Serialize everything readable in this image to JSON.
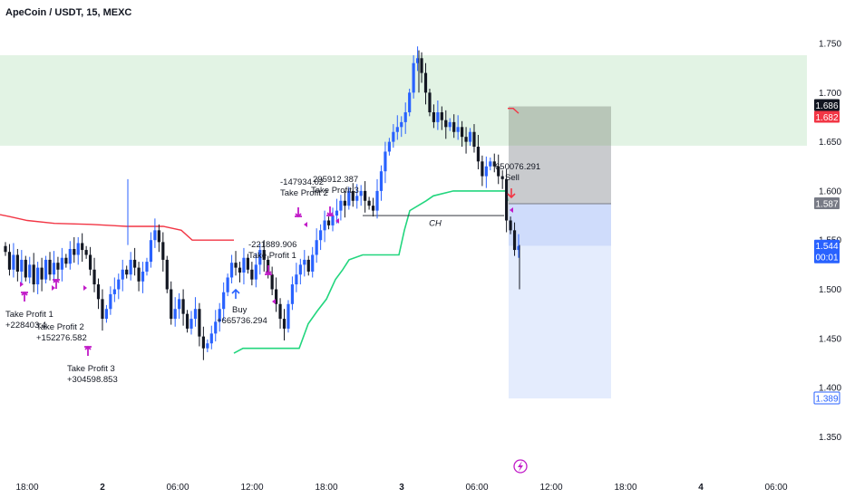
{
  "header": {
    "title": "ApeCoin / USDT, 15, MEXC"
  },
  "colors": {
    "bull": "#2962ff",
    "bear": "#131722",
    "wick": "#2962ff",
    "supply_zone": "#e2f3e4",
    "trail_upper": "#f23645",
    "trail_lower": "#22d67e",
    "marker": "#c11bc8",
    "badge_price": "#131722",
    "badge_red": "#f23645",
    "badge_gray": "#787b86",
    "badge_blue": "#2962ff",
    "stop_box": "#c9cbce",
    "target_box": "#cfdcfb",
    "target_box_light": "#e4ecfd"
  },
  "price_axis": {
    "labels": [
      "1.750",
      "1.700",
      "1.650",
      "1.600",
      "1.550",
      "1.500",
      "1.450",
      "1.400",
      "1.350"
    ],
    "badges": [
      {
        "text": "1.686",
        "kind": "price"
      },
      {
        "text": "1.682",
        "kind": "red"
      },
      {
        "text": "1.587",
        "kind": "gray"
      },
      {
        "text": "1.544",
        "sub": "00:01",
        "kind": "blue"
      },
      {
        "text": "1.389",
        "kind": "blue_outline"
      }
    ]
  },
  "time_axis": {
    "labels": [
      "18:00",
      "2",
      "06:00",
      "12:00",
      "18:00",
      "3",
      "06:00",
      "12:00",
      "18:00",
      "4",
      "06:00"
    ]
  },
  "annotations": {
    "tp1_a_title": "Take Profit 1",
    "tp1_a_value": "+228403.4",
    "tp2_title": "Take Profit 2",
    "tp2_value": "+152276.582",
    "tp3_a_title": "Take Profit 3",
    "tp3_a_value": "+304598.853",
    "buy_title": "Buy",
    "buy_value": "+665736.294",
    "tp1_b_value": "-221889.906",
    "tp1_b_title": "Take Profit 1",
    "tp2_b_value": "-147934.02",
    "tp2_b_title": "Take Profit 2",
    "tp3_b_value": "295912.387",
    "tp3_b_title": "Take Profit 3",
    "sell_value": "650076.291",
    "sell_title": "Sell",
    "ch_label": "CH"
  },
  "chart_data": {
    "type": "candlestick",
    "title": "ApeCoin / USDT, 15, MEXC",
    "ylim": [
      1.35,
      1.762
    ],
    "x_ticks": [
      "18:00",
      "2",
      "06:00",
      "12:00",
      "18:00",
      "3",
      "06:00",
      "12:00",
      "18:00",
      "4",
      "06:00"
    ],
    "supply_zone": [
      1.646,
      1.738
    ],
    "closes_approx": [
      1.538,
      1.52,
      1.535,
      1.518,
      1.53,
      1.512,
      1.525,
      1.505,
      1.522,
      1.51,
      1.53,
      1.515,
      1.527,
      1.52,
      1.532,
      1.526,
      1.541,
      1.535,
      1.547,
      1.54,
      1.535,
      1.52,
      1.505,
      1.49,
      1.47,
      1.48,
      1.495,
      1.5,
      1.51,
      1.52,
      1.515,
      1.53,
      1.522,
      1.508,
      1.518,
      1.528,
      1.55,
      1.56,
      1.548,
      1.53,
      1.5,
      1.47,
      1.48,
      1.49,
      1.475,
      1.46,
      1.47,
      1.48,
      1.452,
      1.44,
      1.445,
      1.455,
      1.467,
      1.48,
      1.497,
      1.512,
      1.527,
      1.522,
      1.517,
      1.532,
      1.52,
      1.51,
      1.525,
      1.54,
      1.53,
      1.515,
      1.5,
      1.485,
      1.47,
      1.46,
      1.485,
      1.505,
      1.515,
      1.525,
      1.53,
      1.518,
      1.535,
      1.55,
      1.56,
      1.57,
      1.565,
      1.575,
      1.58,
      1.59,
      1.585,
      1.6,
      1.59,
      1.595,
      1.6,
      1.59,
      1.585,
      1.58,
      1.6,
      1.62,
      1.64,
      1.65,
      1.66,
      1.665,
      1.67,
      1.68,
      1.7,
      1.73,
      1.735,
      1.72,
      1.7,
      1.68,
      1.67,
      1.68,
      1.672,
      1.665,
      1.67,
      1.66,
      1.665,
      1.655,
      1.65,
      1.66,
      1.645,
      1.63,
      1.615,
      1.625,
      1.63,
      1.625,
      1.615,
      1.612,
      1.57,
      1.56,
      1.54,
      1.544
    ],
    "trail_upper": {
      "x_frac": [
        0.0,
        0.25
      ],
      "levels": [
        1.57,
        1.55
      ]
    },
    "trail_lower": {
      "levels": [
        1.44,
        1.6
      ]
    },
    "positions": {
      "entry": 1.587,
      "stop": 1.686,
      "target": 1.389
    }
  }
}
